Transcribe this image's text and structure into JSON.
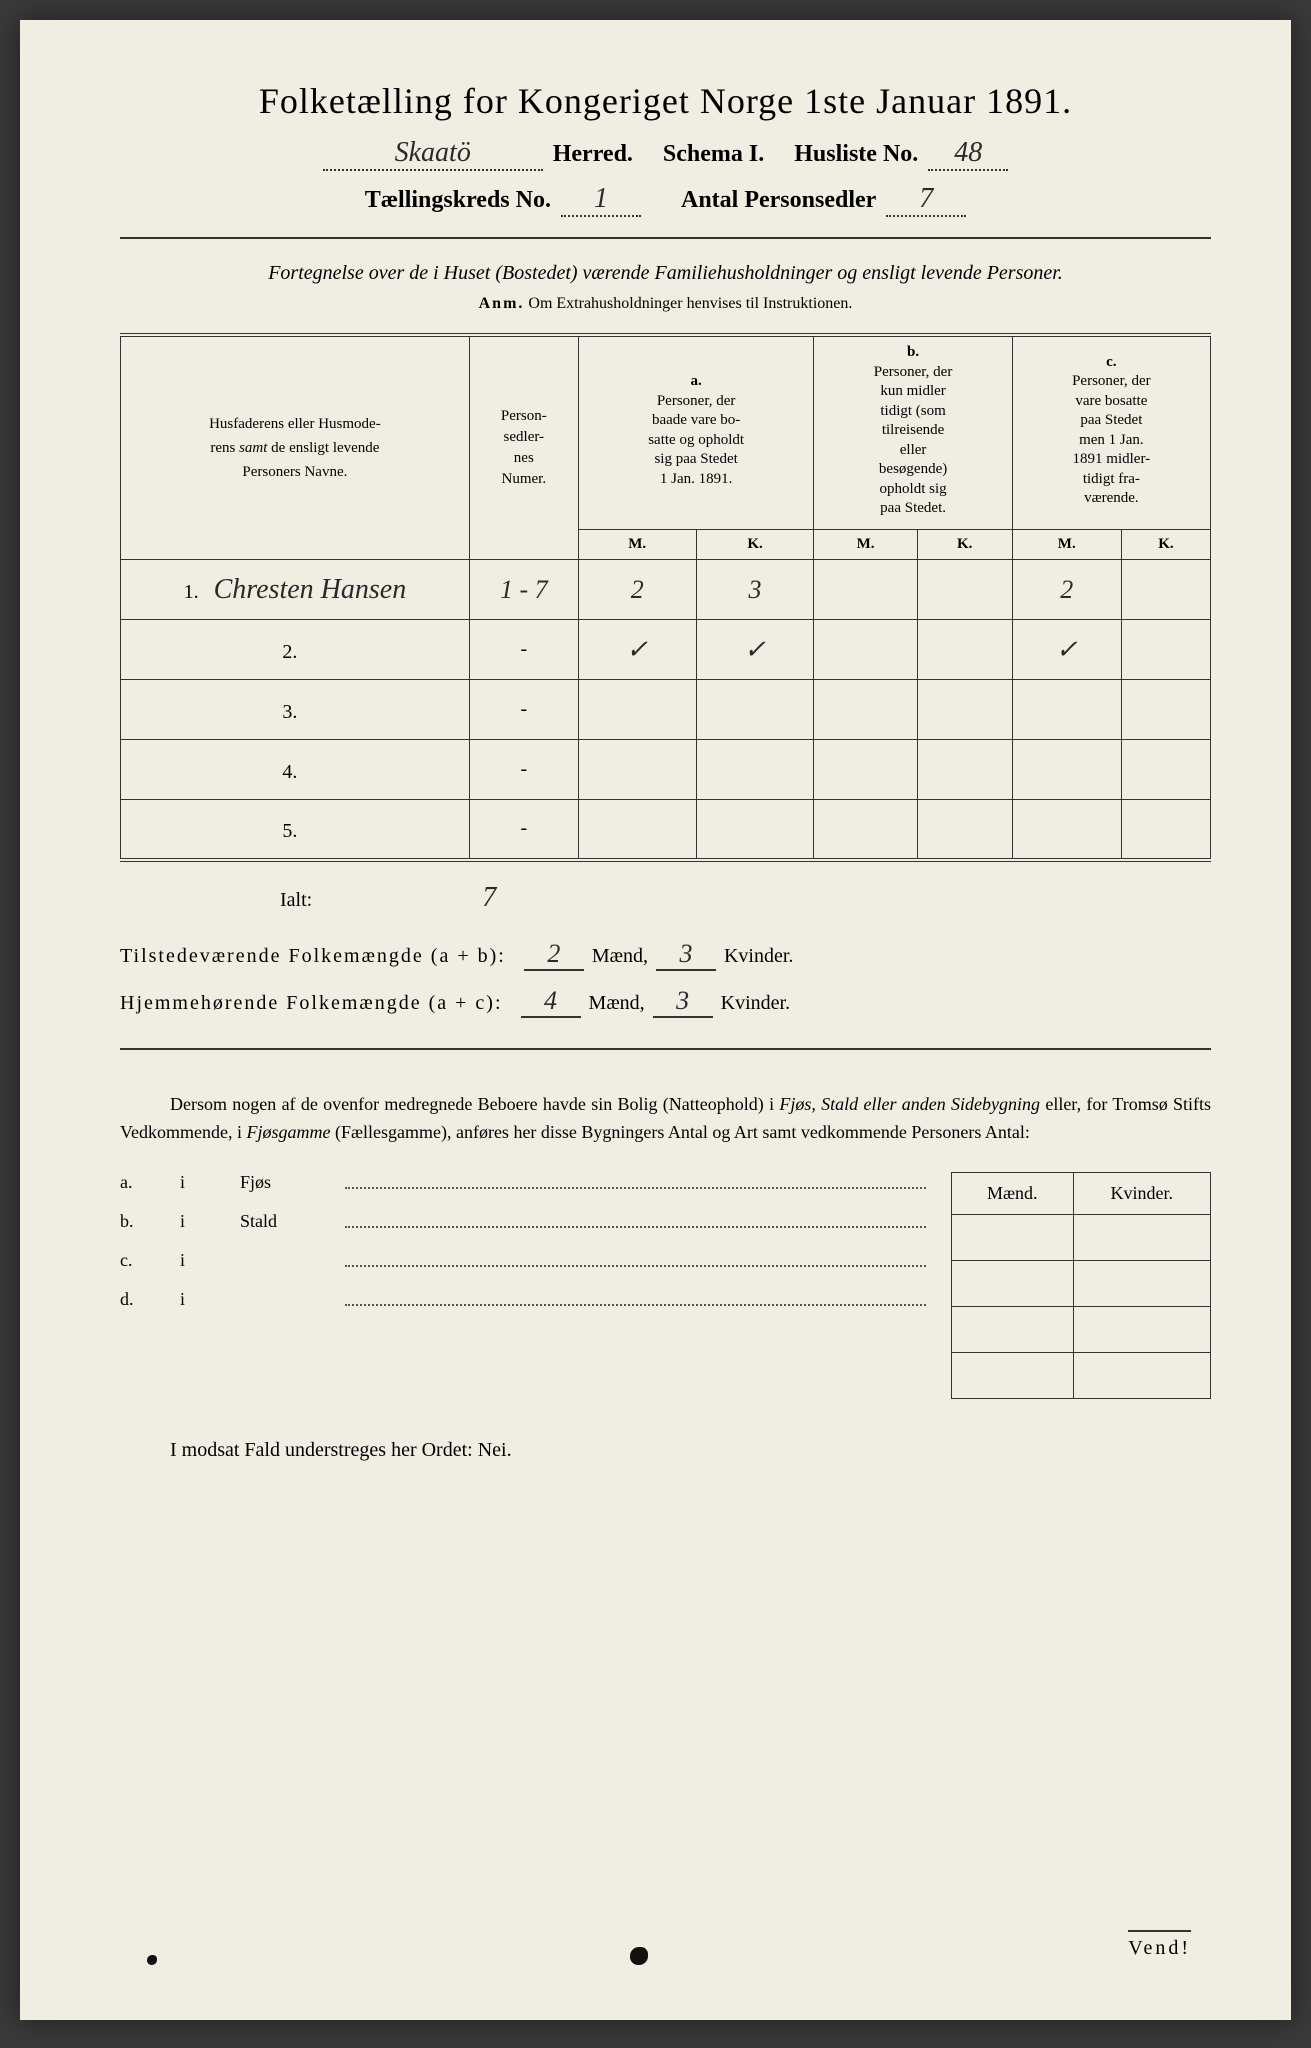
{
  "title": "Folketælling for Kongeriget Norge 1ste Januar 1891.",
  "header": {
    "herred_value": "Skaatö",
    "herred_label": "Herred.",
    "schema_label": "Schema I.",
    "husliste_label": "Husliste No.",
    "husliste_value": "48",
    "kreds_label": "Tællingskreds No.",
    "kreds_value": "1",
    "antal_label": "Antal Personsedler",
    "antal_value": "7"
  },
  "subtitle": "Fortegnelse over de i Huset (Bostedet) værende Familiehusholdninger og ensligt levende Personer.",
  "note_label": "Anm.",
  "note_text": "Om Extrahusholdninger henvises til Instruktionen.",
  "table": {
    "col_names": "Husfaderens eller Husmoderens samt de ensligt levende Personers Navne.",
    "col_num": "Personsedlernes Numer.",
    "col_a_letter": "a.",
    "col_a": "Personer, der baade vare bosatte og opholdt sig paa Stedet 1 Jan. 1891.",
    "col_b_letter": "b.",
    "col_b": "Personer, der kun midlertidigt (som tilreisende eller besøgende) opholdt sig paa Stedet.",
    "col_c_letter": "c.",
    "col_c": "Personer, der vare bosatte paa Stedet men 1 Jan. 1891 midlertidigt fraværende.",
    "m_label": "M.",
    "k_label": "K.",
    "rows": [
      {
        "num": "1.",
        "name": "Chresten Hansen",
        "sedler": "1 - 7",
        "a_m": "2",
        "a_k": "3",
        "b_m": "",
        "b_k": "",
        "c_m": "2",
        "c_k": ""
      },
      {
        "num": "2.",
        "name": "",
        "sedler": "-",
        "a_m": "✓",
        "a_k": "✓",
        "b_m": "",
        "b_k": "",
        "c_m": "✓",
        "c_k": ""
      },
      {
        "num": "3.",
        "name": "",
        "sedler": "-",
        "a_m": "",
        "a_k": "",
        "b_m": "",
        "b_k": "",
        "c_m": "",
        "c_k": ""
      },
      {
        "num": "4.",
        "name": "",
        "sedler": "-",
        "a_m": "",
        "a_k": "",
        "b_m": "",
        "b_k": "",
        "c_m": "",
        "c_k": ""
      },
      {
        "num": "5.",
        "name": "",
        "sedler": "-",
        "a_m": "",
        "a_k": "",
        "b_m": "",
        "b_k": "",
        "c_m": "",
        "c_k": ""
      }
    ]
  },
  "summary": {
    "ialt_label": "Ialt:",
    "ialt_value": "7",
    "line1_label": "Tilstedeværende Folkemængde (a + b):",
    "line1_m": "2",
    "line1_k": "3",
    "line2_label": "Hjemmehørende Folkemængde (a + c):",
    "line2_m": "4",
    "line2_k": "3",
    "maend_label": "Mænd,",
    "kvinder_label": "Kvinder."
  },
  "paragraph": "Dersom nogen af de ovenfor medregnede Beboere havde sin Bolig (Natteophold) i Fjøs, Stald eller anden Sidebygning eller, for Tromsø Stifts Vedkommende, i Fjøsgamme (Fællesgamme), anføres her disse Bygningers Antal og Art samt vedkommende Personers Antal:",
  "buildings": {
    "header_m": "Mænd.",
    "header_k": "Kvinder.",
    "rows": [
      {
        "letter": "a.",
        "i": "i",
        "type": "Fjøs"
      },
      {
        "letter": "b.",
        "i": "i",
        "type": "Stald"
      },
      {
        "letter": "c.",
        "i": "i",
        "type": ""
      },
      {
        "letter": "d.",
        "i": "i",
        "type": ""
      }
    ]
  },
  "footer": "I modsat Fald understreges her Ordet: Nei.",
  "vend": "Vend!"
}
